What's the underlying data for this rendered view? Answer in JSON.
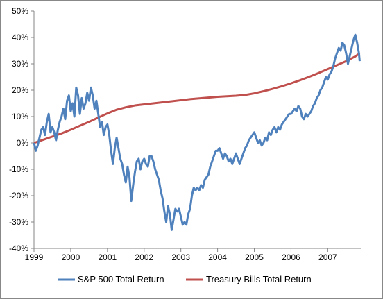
{
  "chart_data": {
    "type": "line",
    "title": "",
    "xlabel": "",
    "ylabel": "",
    "x_ticks": [
      "1999",
      "2000",
      "2001",
      "2002",
      "2003",
      "2004",
      "2005",
      "2006",
      "2007"
    ],
    "y_ticks": [
      "50%",
      "40%",
      "30%",
      "20%",
      "10%",
      "0%",
      "-10%",
      "-20%",
      "-30%",
      "-40%"
    ],
    "ylim": [
      -40,
      50
    ],
    "xlim": [
      1999,
      2007.9
    ],
    "grid": false,
    "legend_position": "bottom",
    "series": [
      {
        "name": "S&P 500 Total Return",
        "color": "#4f81bd",
        "points": [
          [
            1999.0,
            0
          ],
          [
            1999.05,
            -3
          ],
          [
            1999.1,
            -1
          ],
          [
            1999.15,
            2
          ],
          [
            1999.2,
            5
          ],
          [
            1999.25,
            6
          ],
          [
            1999.3,
            3
          ],
          [
            1999.35,
            8
          ],
          [
            1999.4,
            11
          ],
          [
            1999.45,
            4
          ],
          [
            1999.5,
            6
          ],
          [
            1999.55,
            4
          ],
          [
            1999.6,
            1
          ],
          [
            1999.65,
            5
          ],
          [
            1999.7,
            8
          ],
          [
            1999.75,
            10
          ],
          [
            1999.8,
            13
          ],
          [
            1999.85,
            9
          ],
          [
            1999.9,
            16
          ],
          [
            1999.95,
            18
          ],
          [
            2000.0,
            12
          ],
          [
            2000.05,
            15
          ],
          [
            2000.1,
            10
          ],
          [
            2000.15,
            21
          ],
          [
            2000.2,
            18
          ],
          [
            2000.25,
            11
          ],
          [
            2000.3,
            17
          ],
          [
            2000.35,
            13
          ],
          [
            2000.4,
            15
          ],
          [
            2000.45,
            19
          ],
          [
            2000.5,
            16
          ],
          [
            2000.55,
            21
          ],
          [
            2000.6,
            18
          ],
          [
            2000.65,
            13
          ],
          [
            2000.7,
            16
          ],
          [
            2000.75,
            11
          ],
          [
            2000.8,
            6
          ],
          [
            2000.85,
            8
          ],
          [
            2000.9,
            3
          ],
          [
            2000.95,
            6
          ],
          [
            2001.0,
            7
          ],
          [
            2001.05,
            3
          ],
          [
            2001.1,
            -3
          ],
          [
            2001.15,
            -8
          ],
          [
            2001.2,
            -2
          ],
          [
            2001.25,
            2
          ],
          [
            2001.3,
            -2
          ],
          [
            2001.35,
            -6
          ],
          [
            2001.4,
            -8
          ],
          [
            2001.45,
            -12
          ],
          [
            2001.5,
            -15
          ],
          [
            2001.55,
            -9
          ],
          [
            2001.6,
            -13
          ],
          [
            2001.65,
            -22
          ],
          [
            2001.7,
            -16
          ],
          [
            2001.75,
            -11
          ],
          [
            2001.8,
            -7
          ],
          [
            2001.85,
            -6
          ],
          [
            2001.9,
            -10
          ],
          [
            2001.95,
            -7
          ],
          [
            2002.0,
            -6
          ],
          [
            2002.05,
            -8
          ],
          [
            2002.1,
            -9
          ],
          [
            2002.15,
            -5
          ],
          [
            2002.2,
            -5
          ],
          [
            2002.25,
            -7
          ],
          [
            2002.3,
            -10
          ],
          [
            2002.35,
            -12
          ],
          [
            2002.4,
            -14
          ],
          [
            2002.45,
            -18
          ],
          [
            2002.5,
            -21
          ],
          [
            2002.55,
            -26
          ],
          [
            2002.6,
            -30
          ],
          [
            2002.65,
            -24
          ],
          [
            2002.7,
            -27
          ],
          [
            2002.75,
            -33
          ],
          [
            2002.8,
            -29
          ],
          [
            2002.85,
            -25
          ],
          [
            2002.9,
            -26
          ],
          [
            2002.95,
            -25
          ],
          [
            2003.0,
            -28
          ],
          [
            2003.05,
            -31
          ],
          [
            2003.1,
            -30
          ],
          [
            2003.15,
            -31
          ],
          [
            2003.2,
            -27
          ],
          [
            2003.25,
            -25
          ],
          [
            2003.3,
            -20
          ],
          [
            2003.35,
            -17
          ],
          [
            2003.4,
            -18
          ],
          [
            2003.45,
            -17
          ],
          [
            2003.5,
            -18
          ],
          [
            2003.55,
            -16
          ],
          [
            2003.6,
            -17
          ],
          [
            2003.65,
            -14
          ],
          [
            2003.7,
            -13
          ],
          [
            2003.75,
            -12
          ],
          [
            2003.8,
            -9
          ],
          [
            2003.85,
            -7
          ],
          [
            2003.9,
            -5
          ],
          [
            2003.95,
            -3
          ],
          [
            2004.0,
            -3
          ],
          [
            2004.05,
            -2
          ],
          [
            2004.1,
            -4
          ],
          [
            2004.15,
            -6
          ],
          [
            2004.2,
            -4
          ],
          [
            2004.25,
            -5
          ],
          [
            2004.3,
            -7
          ],
          [
            2004.35,
            -6
          ],
          [
            2004.4,
            -8
          ],
          [
            2004.45,
            -6
          ],
          [
            2004.5,
            -4
          ],
          [
            2004.55,
            -6
          ],
          [
            2004.6,
            -8
          ],
          [
            2004.65,
            -6
          ],
          [
            2004.7,
            -4
          ],
          [
            2004.75,
            -2
          ],
          [
            2004.8,
            -1
          ],
          [
            2004.85,
            1
          ],
          [
            2004.9,
            2
          ],
          [
            2004.95,
            3
          ],
          [
            2005.0,
            4
          ],
          [
            2005.05,
            2
          ],
          [
            2005.1,
            0
          ],
          [
            2005.15,
            1
          ],
          [
            2005.2,
            -1
          ],
          [
            2005.25,
            0
          ],
          [
            2005.3,
            2
          ],
          [
            2005.35,
            1
          ],
          [
            2005.4,
            4
          ],
          [
            2005.45,
            3
          ],
          [
            2005.5,
            5
          ],
          [
            2005.55,
            6
          ],
          [
            2005.6,
            4
          ],
          [
            2005.65,
            6
          ],
          [
            2005.7,
            5
          ],
          [
            2005.75,
            7
          ],
          [
            2005.8,
            8
          ],
          [
            2005.85,
            9
          ],
          [
            2005.9,
            10
          ],
          [
            2005.95,
            11
          ],
          [
            2006.0,
            11
          ],
          [
            2006.05,
            12
          ],
          [
            2006.1,
            13
          ],
          [
            2006.15,
            12
          ],
          [
            2006.2,
            14
          ],
          [
            2006.25,
            13
          ],
          [
            2006.3,
            10
          ],
          [
            2006.35,
            9
          ],
          [
            2006.4,
            11
          ],
          [
            2006.45,
            10
          ],
          [
            2006.5,
            11
          ],
          [
            2006.55,
            12
          ],
          [
            2006.6,
            14
          ],
          [
            2006.65,
            15
          ],
          [
            2006.7,
            17
          ],
          [
            2006.75,
            18
          ],
          [
            2006.8,
            20
          ],
          [
            2006.85,
            21
          ],
          [
            2006.9,
            23
          ],
          [
            2006.95,
            25
          ],
          [
            2007.0,
            24
          ],
          [
            2007.05,
            26
          ],
          [
            2007.1,
            27
          ],
          [
            2007.15,
            29
          ],
          [
            2007.2,
            32
          ],
          [
            2007.25,
            34
          ],
          [
            2007.3,
            36
          ],
          [
            2007.35,
            35
          ],
          [
            2007.4,
            38
          ],
          [
            2007.45,
            37
          ],
          [
            2007.5,
            34
          ],
          [
            2007.55,
            30
          ],
          [
            2007.6,
            33
          ],
          [
            2007.65,
            36
          ],
          [
            2007.7,
            39
          ],
          [
            2007.75,
            41
          ],
          [
            2007.8,
            38
          ],
          [
            2007.85,
            34
          ],
          [
            2007.87,
            31
          ]
        ]
      },
      {
        "name": "Treasury Bills Total Return",
        "color": "#c0504d",
        "points": [
          [
            1999.0,
            0
          ],
          [
            1999.25,
            1.2
          ],
          [
            1999.5,
            2.4
          ],
          [
            1999.75,
            3.6
          ],
          [
            2000.0,
            5
          ],
          [
            2000.25,
            6.5
          ],
          [
            2000.5,
            8
          ],
          [
            2000.75,
            9.6
          ],
          [
            2001.0,
            11.2
          ],
          [
            2001.25,
            12.6
          ],
          [
            2001.5,
            13.5
          ],
          [
            2001.75,
            14.2
          ],
          [
            2002.0,
            14.6
          ],
          [
            2002.25,
            15
          ],
          [
            2002.5,
            15.4
          ],
          [
            2002.75,
            15.8
          ],
          [
            2003.0,
            16.2
          ],
          [
            2003.25,
            16.6
          ],
          [
            2003.5,
            16.9
          ],
          [
            2003.75,
            17.2
          ],
          [
            2004.0,
            17.5
          ],
          [
            2004.25,
            17.7
          ],
          [
            2004.5,
            17.9
          ],
          [
            2004.75,
            18.2
          ],
          [
            2005.0,
            18.8
          ],
          [
            2005.25,
            19.6
          ],
          [
            2005.5,
            20.5
          ],
          [
            2005.75,
            21.5
          ],
          [
            2006.0,
            22.6
          ],
          [
            2006.25,
            23.8
          ],
          [
            2006.5,
            25.1
          ],
          [
            2006.75,
            26.5
          ],
          [
            2007.0,
            28
          ],
          [
            2007.25,
            29.5
          ],
          [
            2007.5,
            31
          ],
          [
            2007.75,
            32.8
          ],
          [
            2007.87,
            34
          ]
        ]
      }
    ]
  }
}
